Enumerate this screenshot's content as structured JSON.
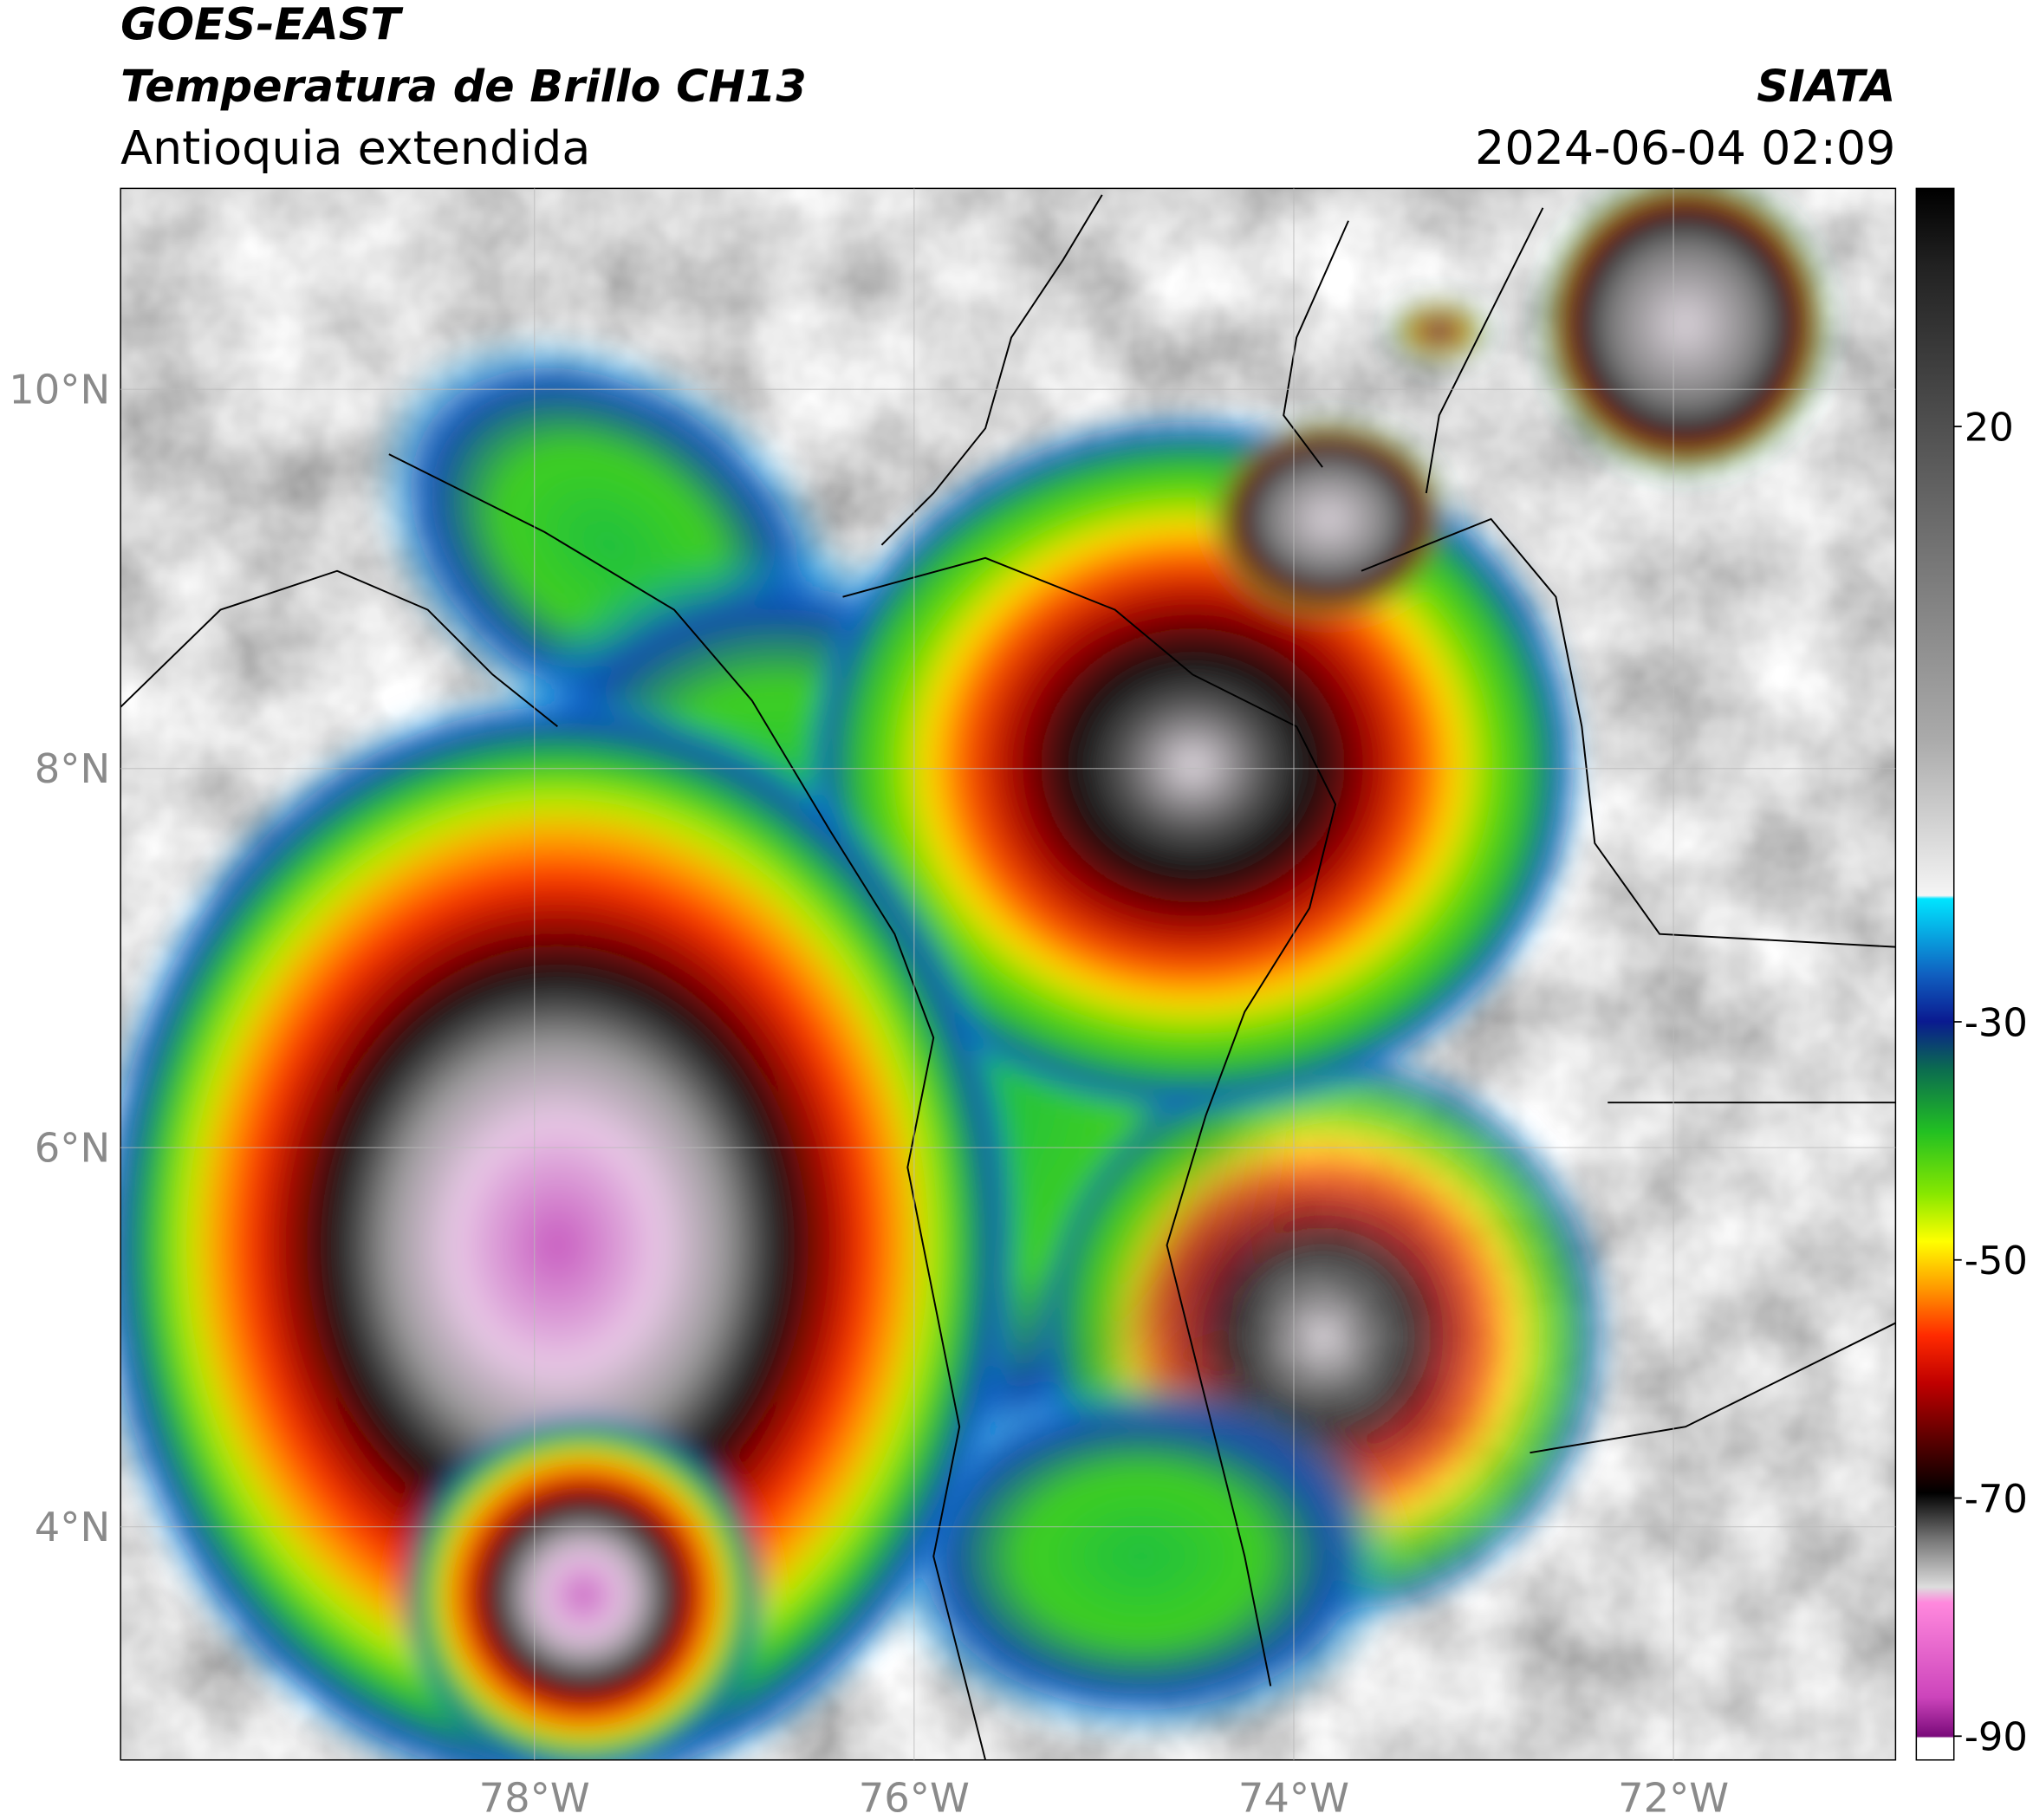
{
  "header": {
    "title": "GOES-EAST",
    "subtitle": "Temperatura de Brillo CH13",
    "region": "Antioquia extendida",
    "source": "SIATA",
    "timestamp": "2024-06-04 02:09"
  },
  "map": {
    "xlim": [
      -80.18,
      -70.83
    ],
    "ylim": [
      2.77,
      11.06
    ],
    "xticks": [
      {
        "value": -78,
        "label": "78°W"
      },
      {
        "value": -76,
        "label": "76°W"
      },
      {
        "value": -74,
        "label": "74°W"
      },
      {
        "value": -72,
        "label": "72°W"
      }
    ],
    "yticks": [
      {
        "value": 4,
        "label": "4°N"
      },
      {
        "value": 6,
        "label": "6°N"
      },
      {
        "value": 8,
        "label": "8°N"
      },
      {
        "value": 10,
        "label": "10°N"
      }
    ]
  },
  "colorbar": {
    "lim": [
      -92,
      40
    ],
    "ticks": [
      20,
      -30,
      -50,
      -70,
      -90
    ]
  }
}
